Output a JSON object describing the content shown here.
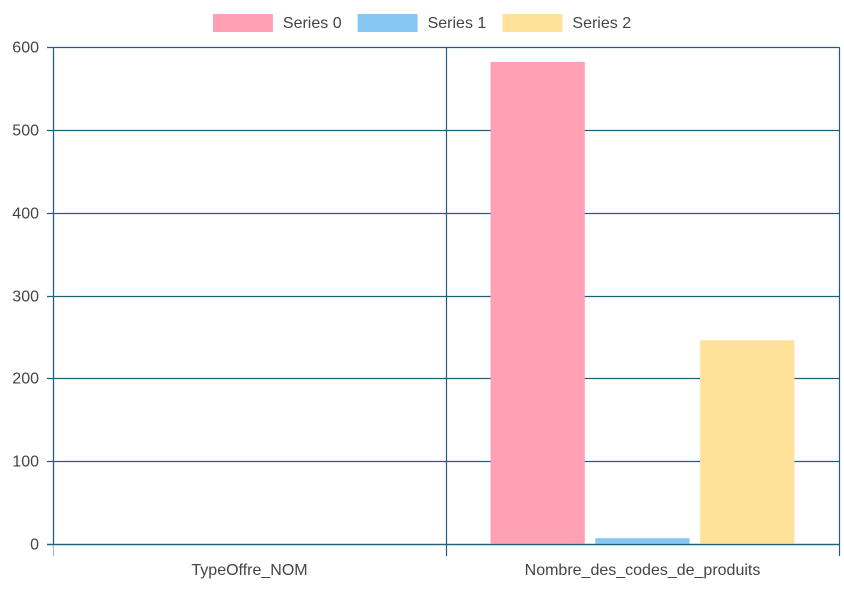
{
  "chart_data": {
    "type": "bar",
    "categories": [
      "TypeOffre_NOM",
      "Nombre_des_codes_de_produits"
    ],
    "series": [
      {
        "name": "Series 0",
        "values": [
          0,
          582
        ],
        "color": "#ffa1b5"
      },
      {
        "name": "Series 1",
        "values": [
          0,
          7
        ],
        "color": "#86c7f3"
      },
      {
        "name": "Series 2",
        "values": [
          0,
          246
        ],
        "color": "#ffe29a"
      }
    ],
    "ylim": [
      0,
      600
    ],
    "yticks": [
      0,
      100,
      200,
      300,
      400,
      500,
      600
    ],
    "grid": true,
    "gridColor": "#1f5f7a",
    "legend_position": "top-center"
  }
}
